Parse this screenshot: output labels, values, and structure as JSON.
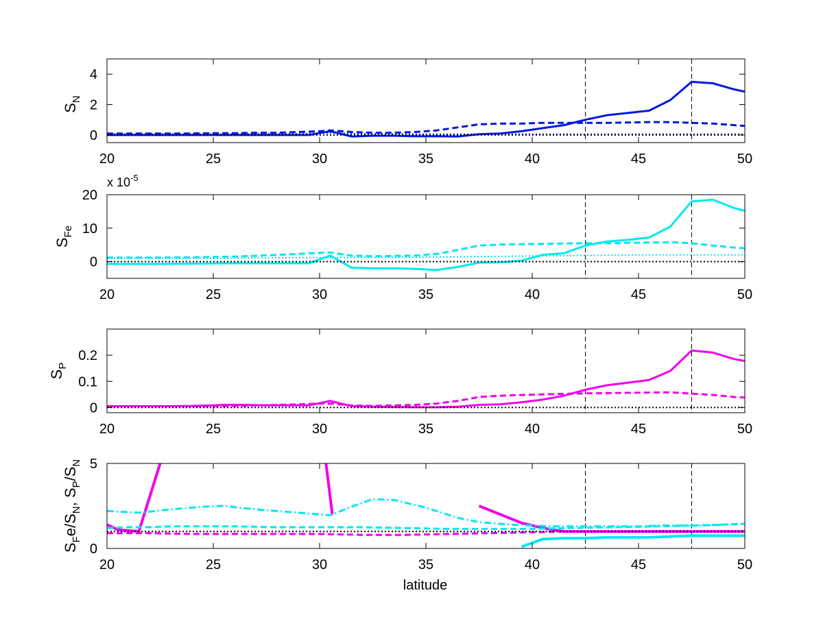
{
  "chart_data": [
    {
      "type": "line",
      "ylabel_main": "S",
      "ylabel_sub": "N",
      "xlabel": "",
      "xlim": [
        20,
        50
      ],
      "ylim": [
        -0.5,
        5
      ],
      "xticks": [
        "20",
        "25",
        "30",
        "35",
        "40",
        "45",
        "50"
      ],
      "xtick_values": [
        20,
        25,
        30,
        35,
        40,
        45,
        50
      ],
      "yticks": [
        "0",
        "2",
        "4"
      ],
      "ytick_values": [
        0,
        2,
        4
      ],
      "vlines": [
        42.5,
        47.5
      ],
      "series": [
        {
          "color": "#0018e0",
          "style": "solid",
          "width": 3,
          "x": [
            20,
            21,
            22,
            23,
            24,
            25,
            26,
            27,
            28,
            29,
            29.5,
            30.5,
            31.5,
            32.5,
            33.5,
            34.5,
            35.5,
            36.5,
            37.5,
            38.5,
            39.5,
            40.5,
            41.5,
            42.5,
            43.5,
            44.5,
            45.5,
            46.5,
            47.5,
            48.5,
            49.5,
            50
          ],
          "y": [
            0,
            0,
            0,
            0,
            0,
            0,
            0,
            0,
            0,
            0,
            0,
            0.25,
            -0.1,
            -0.05,
            -0.05,
            -0.08,
            -0.08,
            -0.1,
            0.05,
            0.1,
            0.25,
            0.45,
            0.65,
            1.0,
            1.3,
            1.45,
            1.6,
            2.3,
            3.5,
            3.4,
            3.0,
            2.85
          ]
        },
        {
          "color": "#0018e0",
          "style": "dashed",
          "width": 3,
          "x": [
            20,
            21,
            22,
            23,
            24,
            25,
            26,
            27,
            28,
            29,
            30,
            30.5,
            31.5,
            32.5,
            33.5,
            34.5,
            35.5,
            36.5,
            37.5,
            38.5,
            39.5,
            40.5,
            41.5,
            42.5,
            43.5,
            44.5,
            45.5,
            46.5,
            47.5,
            48.5,
            49.5,
            50
          ],
          "y": [
            0.1,
            0.1,
            0.1,
            0.1,
            0.1,
            0.12,
            0.12,
            0.15,
            0.15,
            0.2,
            0.25,
            0.3,
            0.2,
            0.15,
            0.15,
            0.2,
            0.3,
            0.5,
            0.7,
            0.75,
            0.75,
            0.8,
            0.8,
            0.8,
            0.8,
            0.82,
            0.85,
            0.85,
            0.8,
            0.75,
            0.65,
            0.6
          ]
        },
        {
          "color": "#0018e0",
          "style": "dotted",
          "width": 2,
          "x": [
            20,
            25,
            29,
            30,
            30.5,
            31.5,
            35,
            40,
            45,
            50
          ],
          "y": [
            0.05,
            0.05,
            0.08,
            0.12,
            0.15,
            0.08,
            0.05,
            0.05,
            0.05,
            0.05
          ]
        },
        {
          "color": "#000000",
          "style": "dotted",
          "width": 2,
          "x": [
            20,
            50
          ],
          "y": [
            0,
            0
          ]
        }
      ]
    },
    {
      "type": "line",
      "ylabel_main": "S",
      "ylabel_sub": "Fe",
      "exponent_base": "x 10",
      "exponent_power": "-5",
      "xlabel": "",
      "xlim": [
        20,
        50
      ],
      "ylim": [
        -5,
        20
      ],
      "xticks": [
        "20",
        "25",
        "30",
        "35",
        "40",
        "45",
        "50"
      ],
      "xtick_values": [
        20,
        25,
        30,
        35,
        40,
        45,
        50
      ],
      "yticks": [
        "0",
        "10",
        "20"
      ],
      "ytick_values": [
        0,
        10,
        20
      ],
      "vlines": [
        42.5,
        47.5
      ],
      "series": [
        {
          "color": "#00e8f0",
          "style": "solid",
          "width": 3,
          "x": [
            20,
            22,
            24,
            26,
            28,
            29.5,
            30.5,
            31.5,
            32.5,
            33.5,
            34.5,
            35.5,
            36.5,
            37.5,
            38.5,
            39.5,
            40.5,
            41.5,
            42.5,
            43.5,
            44.5,
            45.5,
            46.5,
            47.5,
            48.5,
            49.5,
            50
          ],
          "y": [
            -0.7,
            -0.7,
            -0.6,
            -0.5,
            -0.5,
            -0.5,
            1.8,
            -1.8,
            -2.0,
            -2.0,
            -2.2,
            -2.5,
            -1.6,
            -0.3,
            -0.2,
            0.3,
            2.0,
            2.5,
            4.8,
            6.0,
            6.5,
            7.2,
            10.5,
            18.0,
            18.5,
            16.0,
            15.2
          ]
        },
        {
          "color": "#00e8f0",
          "style": "dashed",
          "width": 3,
          "x": [
            20,
            22,
            24,
            26,
            28,
            29,
            30,
            30.5,
            31.5,
            32.5,
            33.5,
            34.5,
            35.5,
            36.5,
            37.5,
            38.5,
            39.5,
            40.5,
            41.5,
            42.5,
            43.5,
            44.5,
            45.5,
            46.5,
            47.5,
            48.5,
            49.5,
            50
          ],
          "y": [
            1.2,
            1.2,
            1.3,
            1.5,
            2.0,
            2.3,
            2.6,
            2.7,
            1.8,
            1.6,
            1.7,
            1.8,
            2.3,
            3.5,
            4.8,
            5.1,
            5.2,
            5.3,
            5.4,
            5.5,
            5.5,
            5.6,
            5.7,
            5.8,
            5.5,
            4.8,
            4.2,
            4.0
          ]
        },
        {
          "color": "#00e8f0",
          "style": "dotted",
          "width": 2,
          "x": [
            20,
            25,
            30,
            35,
            40,
            45,
            50
          ],
          "y": [
            1.0,
            1.0,
            1.2,
            1.3,
            1.7,
            2.0,
            2.0
          ]
        },
        {
          "color": "#000000",
          "style": "dotted",
          "width": 2,
          "x": [
            20,
            50
          ],
          "y": [
            0,
            0
          ]
        }
      ]
    },
    {
      "type": "line",
      "ylabel_main": "S",
      "ylabel_sub": "P",
      "xlabel": "",
      "xlim": [
        20,
        50
      ],
      "ylim": [
        -0.02,
        0.3
      ],
      "xticks": [
        "20",
        "25",
        "30",
        "35",
        "40",
        "45",
        "50"
      ],
      "xtick_values": [
        20,
        25,
        30,
        35,
        40,
        45,
        50
      ],
      "yticks": [
        "0",
        "0.1",
        "0.2"
      ],
      "ytick_values": [
        0,
        0.1,
        0.2
      ],
      "vlines": [
        42.5,
        47.5
      ],
      "series": [
        {
          "color": "#ee00ee",
          "style": "solid",
          "width": 3,
          "x": [
            20,
            21,
            22,
            23,
            24,
            25,
            25.5,
            26.5,
            27.5,
            28.5,
            29.5,
            30.5,
            31.5,
            32.5,
            33.5,
            34.5,
            35.5,
            36.5,
            37.5,
            38.5,
            39.5,
            40.5,
            41.5,
            42.5,
            43.5,
            44.5,
            45.5,
            46.5,
            47.5,
            48.5,
            49.5,
            50
          ],
          "y": [
            0.005,
            0.005,
            0.005,
            0.005,
            0.006,
            0.008,
            0.01,
            0.01,
            0.008,
            0.008,
            0.008,
            0.025,
            0.005,
            0.003,
            0.002,
            0.001,
            0.001,
            0.003,
            0.01,
            0.012,
            0.02,
            0.03,
            0.045,
            0.068,
            0.085,
            0.095,
            0.105,
            0.14,
            0.218,
            0.21,
            0.185,
            0.178
          ]
        },
        {
          "color": "#ee00ee",
          "style": "dashed",
          "width": 3,
          "x": [
            20,
            22,
            24,
            26,
            28,
            29,
            30,
            30.5,
            31.5,
            32.5,
            33.5,
            34.5,
            35.5,
            36.5,
            37.5,
            38.5,
            39.5,
            40.5,
            41.5,
            42.5,
            43.5,
            44.5,
            45.5,
            46.5,
            47.5,
            48.5,
            49.5,
            50
          ],
          "y": [
            0.005,
            0.005,
            0.005,
            0.006,
            0.01,
            0.012,
            0.015,
            0.015,
            0.008,
            0.006,
            0.008,
            0.01,
            0.015,
            0.025,
            0.04,
            0.045,
            0.048,
            0.05,
            0.052,
            0.054,
            0.055,
            0.056,
            0.057,
            0.058,
            0.053,
            0.048,
            0.04,
            0.038
          ]
        },
        {
          "color": "#000000",
          "style": "dotted",
          "width": 2,
          "x": [
            20,
            50
          ],
          "y": [
            0,
            0
          ]
        }
      ]
    },
    {
      "type": "line",
      "ylabel_text": "S",
      "xlabel": "latitude",
      "xlim": [
        20,
        50
      ],
      "ylim": [
        0,
        5
      ],
      "xticks": [
        "20",
        "25",
        "30",
        "35",
        "40",
        "45",
        "50"
      ],
      "xtick_values": [
        20,
        25,
        30,
        35,
        40,
        45,
        50
      ],
      "yticks": [
        "0",
        "5"
      ],
      "ytick_values": [
        0,
        5
      ],
      "vlines": [
        42.5,
        47.5
      ],
      "series": [
        {
          "color": "#ee00ee",
          "style": "solid",
          "width": 4,
          "x": [
            20,
            20.5,
            21.5,
            22.5
          ],
          "y": [
            1.4,
            1.1,
            1.0,
            5.0
          ]
        },
        {
          "color": "#ee00ee",
          "style": "solid",
          "width": 4,
          "x": [
            30.3,
            30.6
          ],
          "y": [
            5.0,
            2.0
          ]
        },
        {
          "color": "#ee00ee",
          "style": "solid",
          "width": 4,
          "x": [
            37.5,
            38.5,
            39.5,
            40.5,
            41.5,
            42.5,
            43.5,
            44.5,
            45.5,
            46.5,
            47.5,
            48.5,
            49.5,
            50
          ],
          "y": [
            2.5,
            2.0,
            1.5,
            1.2,
            1.0,
            1.0,
            1.0,
            1.0,
            1.0,
            1.0,
            1.0,
            1.0,
            1.0,
            1.0
          ]
        },
        {
          "color": "#ee00ee",
          "style": "dashed",
          "width": 3,
          "x": [
            20,
            22,
            24,
            26,
            28,
            30,
            32,
            34,
            36,
            38,
            40,
            42,
            44,
            46,
            48,
            50
          ],
          "y": [
            0.9,
            0.9,
            0.85,
            0.85,
            0.85,
            0.85,
            0.8,
            0.8,
            0.85,
            0.9,
            0.95,
            1.0,
            1.0,
            1.0,
            1.0,
            1.0
          ]
        },
        {
          "color": "#00e8f0",
          "style": "solid",
          "width": 4,
          "x": [
            39.5,
            40.5,
            41.5,
            42.5,
            43.5,
            44.5,
            45.5,
            46.5,
            47.5,
            48.5,
            49.5,
            50
          ],
          "y": [
            0.1,
            0.55,
            0.6,
            0.6,
            0.65,
            0.65,
            0.65,
            0.7,
            0.75,
            0.75,
            0.75,
            0.75
          ]
        },
        {
          "color": "#00e8f0",
          "style": "dashed",
          "width": 3,
          "x": [
            20,
            21,
            22,
            23,
            24,
            25,
            26,
            28,
            30,
            32,
            34,
            36,
            38,
            40,
            42,
            44,
            46,
            47.5,
            49,
            50
          ],
          "y": [
            1.2,
            1.25,
            1.25,
            1.3,
            1.3,
            1.3,
            1.3,
            1.25,
            1.25,
            1.25,
            1.2,
            1.15,
            1.15,
            1.15,
            1.2,
            1.25,
            1.3,
            1.35,
            1.4,
            1.45
          ]
        },
        {
          "color": "#00e8f0",
          "style": "dashdot",
          "width": 3,
          "x": [
            20,
            21.5,
            23,
            24.5,
            25.5,
            27,
            28.5,
            30.5,
            31.5,
            32.5,
            33.5,
            35,
            36.5,
            37.5,
            39,
            40,
            41,
            42,
            43,
            44,
            45,
            46,
            47,
            48,
            49,
            50
          ],
          "y": [
            2.2,
            2.1,
            2.3,
            2.45,
            2.5,
            2.3,
            2.15,
            1.95,
            2.45,
            2.9,
            2.85,
            2.4,
            1.8,
            1.55,
            1.4,
            1.35,
            1.3,
            1.3,
            1.3,
            1.3,
            1.3,
            1.35,
            1.35,
            1.35,
            1.4,
            1.45
          ]
        },
        {
          "color": "#000000",
          "style": "dotted",
          "width": 2,
          "x": [
            20,
            50
          ],
          "y": [
            1,
            1
          ]
        }
      ]
    }
  ]
}
